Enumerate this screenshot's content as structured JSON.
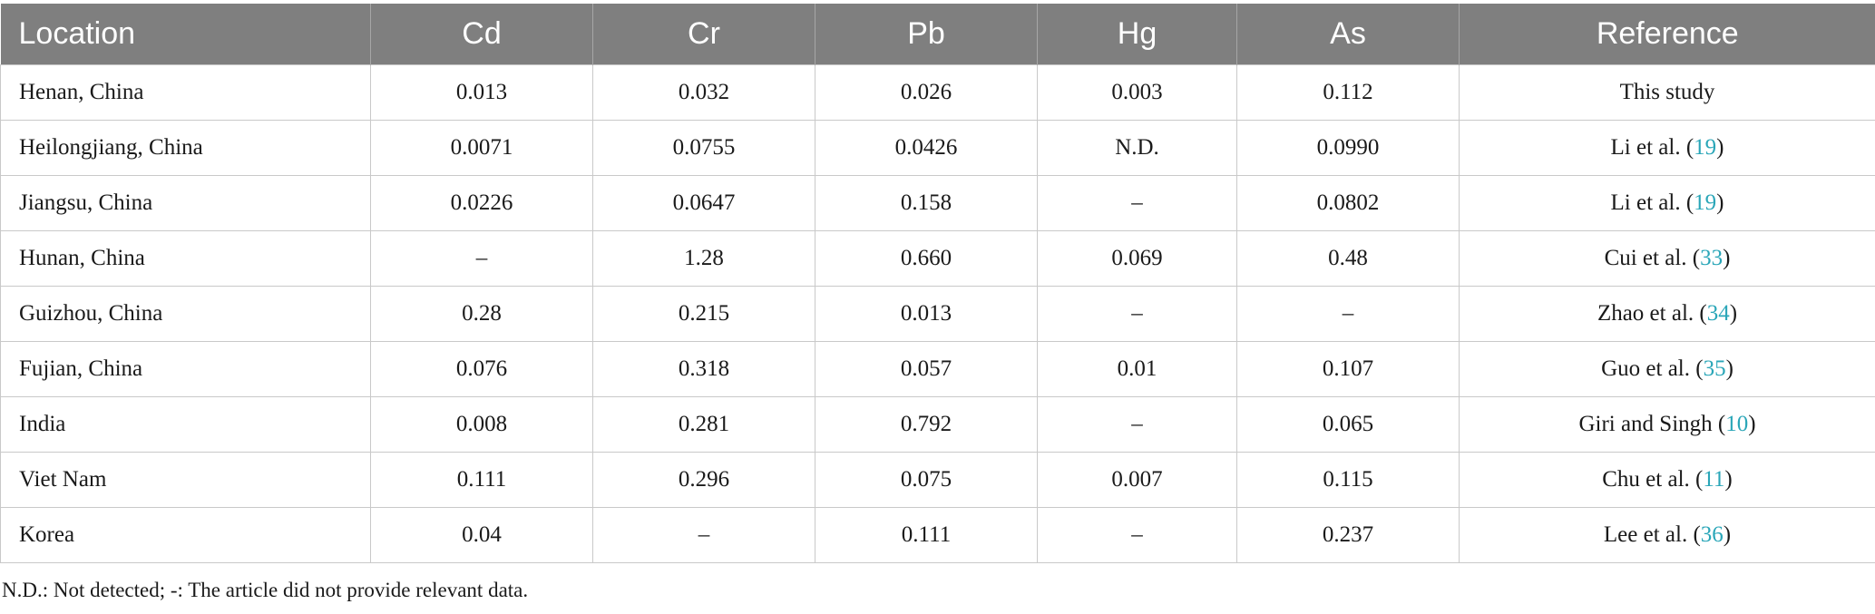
{
  "table": {
    "headers": [
      "Location",
      "Cd",
      "Cr",
      "Pb",
      "Hg",
      "As",
      "Reference"
    ],
    "rows": [
      {
        "location": "Henan, China",
        "cd": "0.013",
        "cr": "0.032",
        "pb": "0.026",
        "hg": "0.003",
        "as": "0.112",
        "ref_text": "This study",
        "ref_num": "",
        "ref_close": ""
      },
      {
        "location": "Heilongjiang, China",
        "cd": "0.0071",
        "cr": "0.0755",
        "pb": "0.0426",
        "hg": "N.D.",
        "as": "0.0990",
        "ref_text": "Li et al. (",
        "ref_num": "19",
        "ref_close": ")"
      },
      {
        "location": "Jiangsu, China",
        "cd": "0.0226",
        "cr": "0.0647",
        "pb": "0.158",
        "hg": "–",
        "as": "0.0802",
        "ref_text": "Li et al. (",
        "ref_num": "19",
        "ref_close": ")"
      },
      {
        "location": "Hunan, China",
        "cd": "–",
        "cr": "1.28",
        "pb": "0.660",
        "hg": "0.069",
        "as": "0.48",
        "ref_text": "Cui et al. (",
        "ref_num": "33",
        "ref_close": ")"
      },
      {
        "location": "Guizhou, China",
        "cd": "0.28",
        "cr": "0.215",
        "pb": "0.013",
        "hg": "–",
        "as": "–",
        "ref_text": "Zhao et al. (",
        "ref_num": "34",
        "ref_close": ")"
      },
      {
        "location": "Fujian, China",
        "cd": "0.076",
        "cr": "0.318",
        "pb": "0.057",
        "hg": "0.01",
        "as": "0.107",
        "ref_text": "Guo et al. (",
        "ref_num": "35",
        "ref_close": ")"
      },
      {
        "location": "India",
        "cd": "0.008",
        "cr": "0.281",
        "pb": "0.792",
        "hg": "–",
        "as": "0.065",
        "ref_text": "Giri and Singh (",
        "ref_num": "10",
        "ref_close": ")"
      },
      {
        "location": "Viet Nam",
        "cd": "0.111",
        "cr": "0.296",
        "pb": "0.075",
        "hg": "0.007",
        "as": "0.115",
        "ref_text": "Chu et al. (",
        "ref_num": "11",
        "ref_close": ")"
      },
      {
        "location": "Korea",
        "cd": "0.04",
        "cr": "–",
        "pb": "0.111",
        "hg": "–",
        "as": "0.237",
        "ref_text": "Lee et al. (",
        "ref_num": "36",
        "ref_close": ")"
      }
    ],
    "footnote": "N.D.: Not detected; -: The article did not provide relevant data."
  },
  "colors": {
    "header_bg": "#7f7f7f",
    "header_text": "#ffffff",
    "link": "#2aa6b8",
    "grid": "#c9c9c9"
  }
}
